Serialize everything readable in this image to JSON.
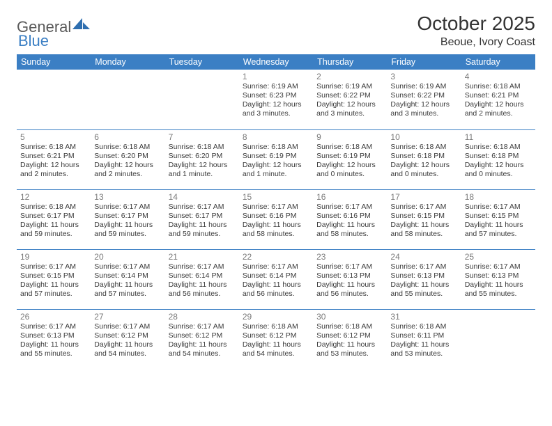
{
  "logo": {
    "text1": "General",
    "text2": "Blue"
  },
  "title": "October 2025",
  "subtitle": "Beoue, Ivory Coast",
  "colors": {
    "accent": "#3b7fc4",
    "header_text": "#ffffff",
    "body_text": "#3a3a3a",
    "daynum": "#7a7a7a",
    "logo_gray": "#5a5a5a",
    "background": "#ffffff"
  },
  "day_headers": [
    "Sunday",
    "Monday",
    "Tuesday",
    "Wednesday",
    "Thursday",
    "Friday",
    "Saturday"
  ],
  "weeks": [
    [
      {
        "day": "",
        "sunrise": "",
        "sunset": "",
        "daylight": ""
      },
      {
        "day": "",
        "sunrise": "",
        "sunset": "",
        "daylight": ""
      },
      {
        "day": "",
        "sunrise": "",
        "sunset": "",
        "daylight": ""
      },
      {
        "day": "1",
        "sunrise": "6:19 AM",
        "sunset": "6:23 PM",
        "daylight": "12 hours and 3 minutes."
      },
      {
        "day": "2",
        "sunrise": "6:19 AM",
        "sunset": "6:22 PM",
        "daylight": "12 hours and 3 minutes."
      },
      {
        "day": "3",
        "sunrise": "6:19 AM",
        "sunset": "6:22 PM",
        "daylight": "12 hours and 3 minutes."
      },
      {
        "day": "4",
        "sunrise": "6:18 AM",
        "sunset": "6:21 PM",
        "daylight": "12 hours and 2 minutes."
      }
    ],
    [
      {
        "day": "5",
        "sunrise": "6:18 AM",
        "sunset": "6:21 PM",
        "daylight": "12 hours and 2 minutes."
      },
      {
        "day": "6",
        "sunrise": "6:18 AM",
        "sunset": "6:20 PM",
        "daylight": "12 hours and 2 minutes."
      },
      {
        "day": "7",
        "sunrise": "6:18 AM",
        "sunset": "6:20 PM",
        "daylight": "12 hours and 1 minute."
      },
      {
        "day": "8",
        "sunrise": "6:18 AM",
        "sunset": "6:19 PM",
        "daylight": "12 hours and 1 minute."
      },
      {
        "day": "9",
        "sunrise": "6:18 AM",
        "sunset": "6:19 PM",
        "daylight": "12 hours and 0 minutes."
      },
      {
        "day": "10",
        "sunrise": "6:18 AM",
        "sunset": "6:18 PM",
        "daylight": "12 hours and 0 minutes."
      },
      {
        "day": "11",
        "sunrise": "6:18 AM",
        "sunset": "6:18 PM",
        "daylight": "12 hours and 0 minutes."
      }
    ],
    [
      {
        "day": "12",
        "sunrise": "6:18 AM",
        "sunset": "6:17 PM",
        "daylight": "11 hours and 59 minutes."
      },
      {
        "day": "13",
        "sunrise": "6:17 AM",
        "sunset": "6:17 PM",
        "daylight": "11 hours and 59 minutes."
      },
      {
        "day": "14",
        "sunrise": "6:17 AM",
        "sunset": "6:17 PM",
        "daylight": "11 hours and 59 minutes."
      },
      {
        "day": "15",
        "sunrise": "6:17 AM",
        "sunset": "6:16 PM",
        "daylight": "11 hours and 58 minutes."
      },
      {
        "day": "16",
        "sunrise": "6:17 AM",
        "sunset": "6:16 PM",
        "daylight": "11 hours and 58 minutes."
      },
      {
        "day": "17",
        "sunrise": "6:17 AM",
        "sunset": "6:15 PM",
        "daylight": "11 hours and 58 minutes."
      },
      {
        "day": "18",
        "sunrise": "6:17 AM",
        "sunset": "6:15 PM",
        "daylight": "11 hours and 57 minutes."
      }
    ],
    [
      {
        "day": "19",
        "sunrise": "6:17 AM",
        "sunset": "6:15 PM",
        "daylight": "11 hours and 57 minutes."
      },
      {
        "day": "20",
        "sunrise": "6:17 AM",
        "sunset": "6:14 PM",
        "daylight": "11 hours and 57 minutes."
      },
      {
        "day": "21",
        "sunrise": "6:17 AM",
        "sunset": "6:14 PM",
        "daylight": "11 hours and 56 minutes."
      },
      {
        "day": "22",
        "sunrise": "6:17 AM",
        "sunset": "6:14 PM",
        "daylight": "11 hours and 56 minutes."
      },
      {
        "day": "23",
        "sunrise": "6:17 AM",
        "sunset": "6:13 PM",
        "daylight": "11 hours and 56 minutes."
      },
      {
        "day": "24",
        "sunrise": "6:17 AM",
        "sunset": "6:13 PM",
        "daylight": "11 hours and 55 minutes."
      },
      {
        "day": "25",
        "sunrise": "6:17 AM",
        "sunset": "6:13 PM",
        "daylight": "11 hours and 55 minutes."
      }
    ],
    [
      {
        "day": "26",
        "sunrise": "6:17 AM",
        "sunset": "6:13 PM",
        "daylight": "11 hours and 55 minutes."
      },
      {
        "day": "27",
        "sunrise": "6:17 AM",
        "sunset": "6:12 PM",
        "daylight": "11 hours and 54 minutes."
      },
      {
        "day": "28",
        "sunrise": "6:17 AM",
        "sunset": "6:12 PM",
        "daylight": "11 hours and 54 minutes."
      },
      {
        "day": "29",
        "sunrise": "6:18 AM",
        "sunset": "6:12 PM",
        "daylight": "11 hours and 54 minutes."
      },
      {
        "day": "30",
        "sunrise": "6:18 AM",
        "sunset": "6:12 PM",
        "daylight": "11 hours and 53 minutes."
      },
      {
        "day": "31",
        "sunrise": "6:18 AM",
        "sunset": "6:11 PM",
        "daylight": "11 hours and 53 minutes."
      },
      {
        "day": "",
        "sunrise": "",
        "sunset": "",
        "daylight": ""
      }
    ]
  ],
  "labels": {
    "sunrise": "Sunrise: ",
    "sunset": "Sunset: ",
    "daylight": "Daylight: "
  }
}
